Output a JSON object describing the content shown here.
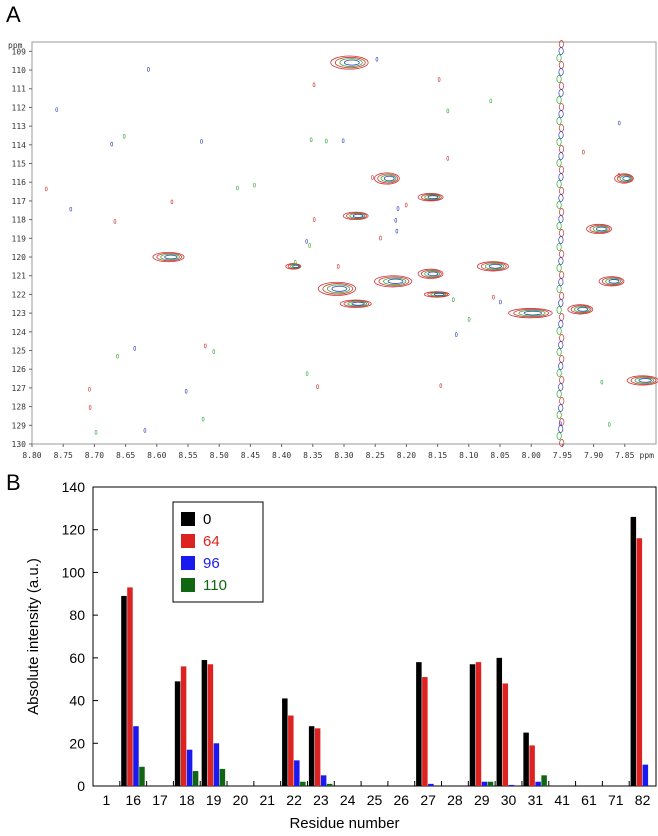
{
  "panels": {
    "a_label": "A",
    "b_label": "B"
  },
  "chart_data": [
    {
      "type": "scatter",
      "subtype": "nmr-2d-contour",
      "x_unit": "ppm",
      "y_unit": "ppm",
      "xlim": [
        8.8,
        7.8
      ],
      "ylim": [
        108.5,
        130
      ],
      "x_ticks": [
        "8.80",
        "8.75",
        "8.70",
        "8.65",
        "8.60",
        "8.55",
        "8.50",
        "8.45",
        "8.40",
        "8.35",
        "8.30",
        "8.25",
        "8.20",
        "8.15",
        "8.10",
        "8.05",
        "8.00",
        "7.95",
        "7.90",
        "7.85"
      ],
      "y_ticks": [
        "109",
        "110",
        "111",
        "112",
        "113",
        "114",
        "115",
        "116",
        "117",
        "118",
        "119",
        "120",
        "121",
        "122",
        "123",
        "124",
        "125",
        "126",
        "127",
        "128",
        "129",
        "130"
      ],
      "colors": [
        "#cc3333",
        "#3344bb",
        "#33aa33"
      ],
      "peaks": [
        {
          "x": 8.29,
          "y": 109.6,
          "w": 0.03,
          "h": 0.7
        },
        {
          "x": 8.58,
          "y": 120.0,
          "w": 0.025,
          "h": 0.5
        },
        {
          "x": 8.23,
          "y": 115.8,
          "w": 0.02,
          "h": 0.6
        },
        {
          "x": 8.16,
          "y": 116.8,
          "w": 0.02,
          "h": 0.4
        },
        {
          "x": 8.28,
          "y": 117.8,
          "w": 0.02,
          "h": 0.4
        },
        {
          "x": 7.89,
          "y": 118.5,
          "w": 0.02,
          "h": 0.5
        },
        {
          "x": 7.85,
          "y": 115.8,
          "w": 0.015,
          "h": 0.5
        },
        {
          "x": 8.31,
          "y": 121.7,
          "w": 0.03,
          "h": 0.7
        },
        {
          "x": 8.22,
          "y": 121.3,
          "w": 0.03,
          "h": 0.6
        },
        {
          "x": 8.16,
          "y": 120.9,
          "w": 0.02,
          "h": 0.5
        },
        {
          "x": 8.06,
          "y": 120.5,
          "w": 0.025,
          "h": 0.5
        },
        {
          "x": 7.87,
          "y": 121.3,
          "w": 0.02,
          "h": 0.5
        },
        {
          "x": 8.28,
          "y": 122.5,
          "w": 0.025,
          "h": 0.4
        },
        {
          "x": 8.0,
          "y": 123.0,
          "w": 0.035,
          "h": 0.5
        },
        {
          "x": 7.92,
          "y": 122.8,
          "w": 0.02,
          "h": 0.5
        },
        {
          "x": 8.15,
          "y": 122.0,
          "w": 0.02,
          "h": 0.3
        },
        {
          "x": 7.82,
          "y": 126.6,
          "w": 0.025,
          "h": 0.5
        },
        {
          "x": 8.38,
          "y": 120.5,
          "w": 0.012,
          "h": 0.3
        }
      ],
      "ridge_x": 7.953
    },
    {
      "type": "bar",
      "categories": [
        "1",
        "16",
        "17",
        "18",
        "19",
        "20",
        "21",
        "22",
        "23",
        "24",
        "25",
        "26",
        "27",
        "28",
        "29",
        "30",
        "31",
        "41",
        "61",
        "71",
        "82"
      ],
      "series": [
        {
          "name": "0",
          "color": "#000000",
          "values": [
            0,
            89,
            0,
            49,
            59,
            0,
            0,
            41,
            28,
            0,
            0,
            0,
            58,
            0,
            57,
            60,
            25,
            0,
            0,
            0,
            126
          ]
        },
        {
          "name": "64",
          "color": "#dd2222",
          "values": [
            0,
            93,
            0,
            56,
            57,
            0,
            0,
            33,
            27,
            0,
            0,
            0,
            51,
            0,
            58,
            48,
            19,
            0,
            0,
            0,
            116
          ]
        },
        {
          "name": "96",
          "color": "#1a1aee",
          "values": [
            0,
            28,
            0,
            17,
            20,
            0,
            0,
            12,
            5,
            0,
            0,
            0,
            1,
            0,
            2,
            0.5,
            2,
            0,
            0,
            0,
            10
          ]
        },
        {
          "name": "110",
          "color": "#116611",
          "values": [
            0,
            9,
            0,
            7,
            8,
            0,
            0,
            2,
            1,
            0,
            0,
            0,
            0,
            0,
            2,
            0,
            5,
            0,
            0,
            0,
            0
          ]
        }
      ],
      "xlabel": "Residue number",
      "ylabel": "Absolute intensity (a.u.)",
      "ylim": [
        0,
        140
      ],
      "y_ticks": [
        0,
        20,
        40,
        60,
        80,
        100,
        120,
        140
      ],
      "legend_position": "top-left"
    }
  ]
}
